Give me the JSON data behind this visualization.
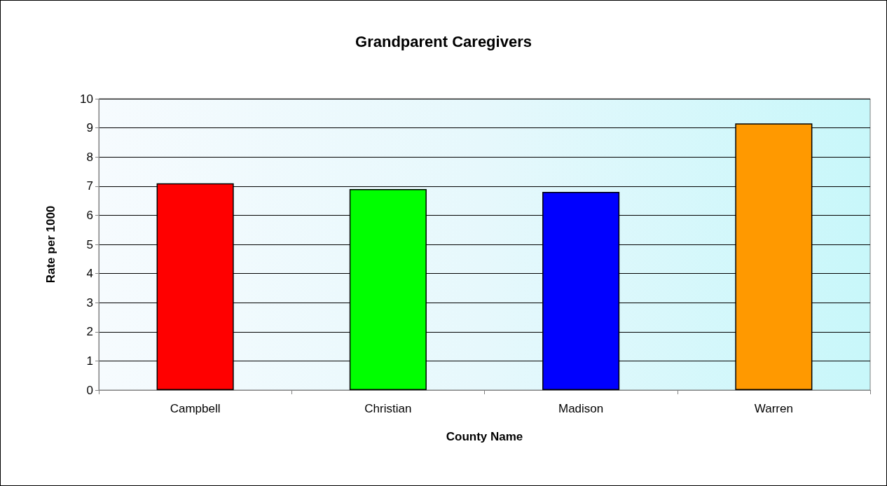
{
  "chart_data": {
    "type": "bar",
    "title": "Grandparent Caregivers",
    "xlabel": "County Name",
    "ylabel": "Rate per 1000",
    "categories": [
      "Campbell",
      "Christian",
      "Madison",
      "Warren"
    ],
    "values": [
      7.1,
      6.9,
      6.8,
      9.15
    ],
    "colors": [
      "#ff0000",
      "#00ff00",
      "#0000ff",
      "#ff9900"
    ],
    "ylim": [
      0,
      10
    ],
    "yticks": [
      0,
      1,
      2,
      3,
      4,
      5,
      6,
      7,
      8,
      9,
      10
    ],
    "grid": "y"
  }
}
